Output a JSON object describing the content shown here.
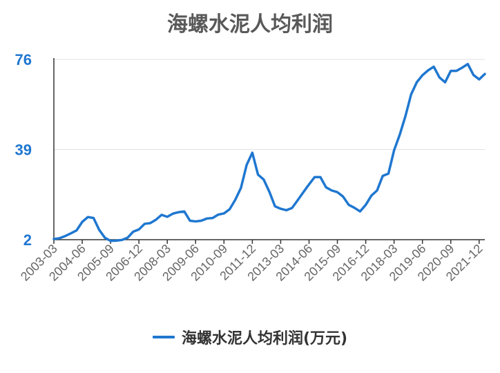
{
  "chart_data": {
    "type": "line",
    "title": "海螺水泥人均利润",
    "xlabel": "",
    "ylabel": "",
    "ylim": [
      2,
      76
    ],
    "yticks": [
      "2",
      "39",
      "76"
    ],
    "grid": true,
    "legend_position": "bottom",
    "x_tick_labels": [
      "2003-03",
      "2004-06",
      "2005-09",
      "2006-12",
      "2008-03",
      "2009-06",
      "2010-09",
      "2011-12",
      "2013-03",
      "2014-06",
      "2015-09",
      "2016-12",
      "2018-03",
      "2019-06",
      "2020-09",
      "2021-12"
    ],
    "series": [
      {
        "name": "海螺水泥人均利润(万元)",
        "color": "#1f77d0",
        "x": [
          "2003-03",
          "2003-06",
          "2003-09",
          "2003-12",
          "2004-03",
          "2004-06",
          "2004-09",
          "2004-12",
          "2005-03",
          "2005-06",
          "2005-09",
          "2005-12",
          "2006-03",
          "2006-06",
          "2006-09",
          "2006-12",
          "2007-03",
          "2007-06",
          "2007-09",
          "2007-12",
          "2008-03",
          "2008-06",
          "2008-09",
          "2008-12",
          "2009-03",
          "2009-06",
          "2009-09",
          "2009-12",
          "2010-03",
          "2010-06",
          "2010-09",
          "2010-12",
          "2011-03",
          "2011-06",
          "2011-09",
          "2011-12",
          "2012-03",
          "2012-06",
          "2012-09",
          "2012-12",
          "2013-03",
          "2013-06",
          "2013-09",
          "2013-12",
          "2014-03",
          "2014-06",
          "2014-09",
          "2014-12",
          "2015-03",
          "2015-06",
          "2015-09",
          "2015-12",
          "2016-03",
          "2016-06",
          "2016-09",
          "2016-12",
          "2017-03",
          "2017-06",
          "2017-09",
          "2017-12",
          "2018-03",
          "2018-06",
          "2018-09",
          "2018-12",
          "2019-03",
          "2019-06",
          "2019-09",
          "2019-12",
          "2020-03",
          "2020-06",
          "2020-09",
          "2020-12",
          "2021-03",
          "2021-06",
          "2021-09",
          "2021-12",
          "2022-03"
        ],
        "values": [
          2.3,
          2.6,
          3.5,
          4.6,
          5.8,
          9.3,
          11.3,
          10.9,
          6.0,
          2.8,
          1.5,
          1.6,
          1.9,
          2.8,
          5.3,
          6.2,
          8.5,
          8.8,
          10.2,
          12.2,
          11.4,
          12.7,
          13.3,
          13.6,
          9.8,
          9.5,
          9.8,
          10.7,
          10.9,
          12.3,
          12.8,
          14.5,
          18.4,
          23.3,
          32.7,
          37.7,
          28.7,
          26.7,
          21.7,
          15.7,
          14.7,
          14.1,
          15.0,
          18.2,
          21.5,
          24.7,
          27.7,
          27.7,
          23.5,
          22.2,
          21.5,
          19.7,
          16.3,
          15.1,
          13.6,
          16.3,
          20.1,
          22.2,
          28.2,
          29.1,
          38.7,
          45.1,
          52.7,
          61.6,
          66.6,
          69.5,
          71.5,
          73.0,
          68.6,
          66.6,
          71.3,
          71.3,
          72.6,
          74.1,
          69.6,
          67.8,
          70.0
        ]
      }
    ]
  }
}
